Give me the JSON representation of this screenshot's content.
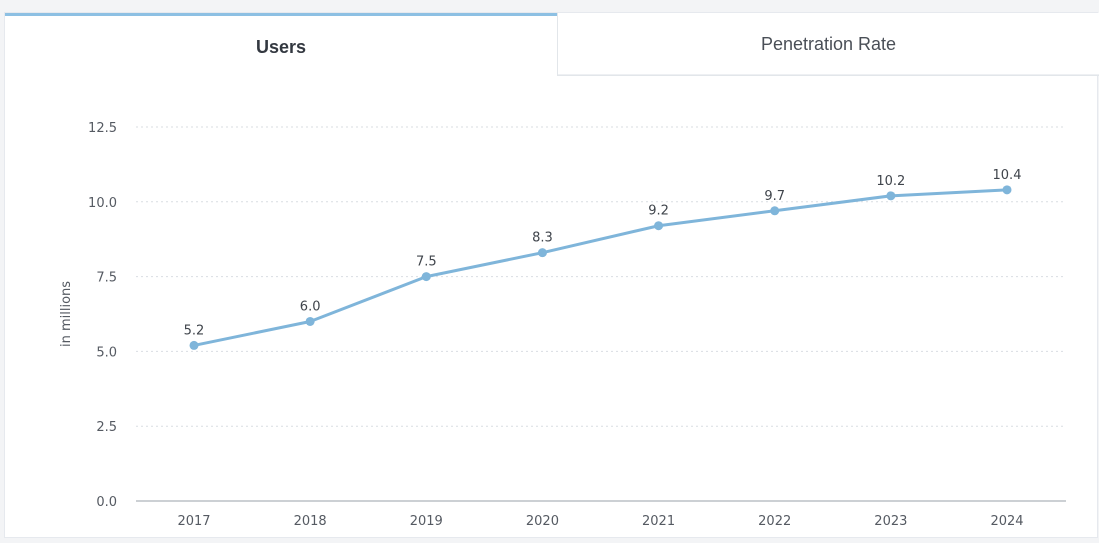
{
  "tabs": [
    {
      "label": "Users",
      "active": true
    },
    {
      "label": "Penetration Rate",
      "active": false
    }
  ],
  "chart_data": {
    "type": "line",
    "x": [
      "2017",
      "2018",
      "2019",
      "2020",
      "2021",
      "2022",
      "2023",
      "2024"
    ],
    "series": [
      {
        "values": [
          5.2,
          6.0,
          7.5,
          8.3,
          9.2,
          9.7,
          10.2,
          10.4
        ]
      }
    ],
    "data_labels": [
      "5.2",
      "6.0",
      "7.5",
      "8.3",
      "9.2",
      "9.7",
      "10.2",
      "10.4"
    ],
    "ylabel": "in millions",
    "xlabel": "",
    "ylim": [
      0,
      12.5
    ],
    "yticks": [
      "0.0",
      "2.5",
      "5.0",
      "7.5",
      "10.0",
      "12.5"
    ],
    "grid": true,
    "line_color": "#7fb5da",
    "grid_color": "#d9dde2",
    "axis_color": "#9aa0a8",
    "text_color": "#555a62"
  }
}
